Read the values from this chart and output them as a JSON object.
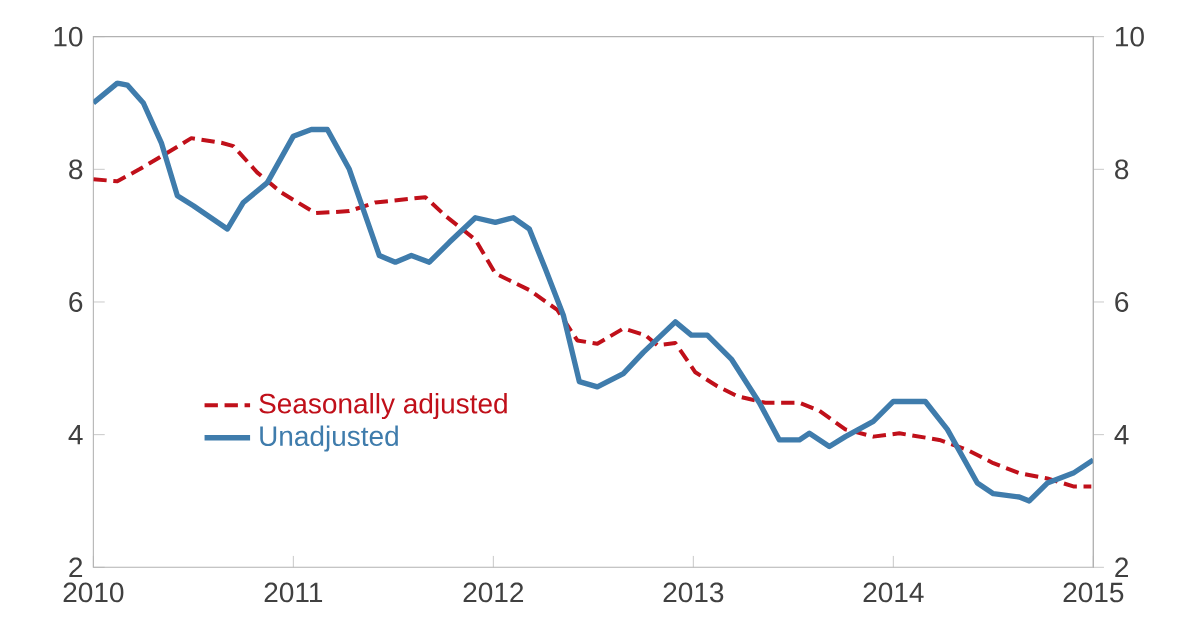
{
  "chart_data": {
    "type": "line",
    "xlim": [
      2010,
      2015
    ],
    "xticks": [
      2010,
      2011,
      2012,
      2013,
      2014,
      2015
    ],
    "ylim": [
      2,
      10
    ],
    "yticks": [
      2,
      4,
      6,
      8,
      10
    ],
    "y2lim": [
      2,
      10
    ],
    "y2ticks": [
      2,
      4,
      6,
      8,
      10
    ],
    "legend": "bottom left",
    "marker": "none",
    "series": [
      {
        "name": "Seasonally adjusted",
        "color": "#c0101a",
        "line_style": "dashed",
        "x": [
          2010,
          2010.12,
          2010.23,
          2010.37,
          2010.49,
          2010.64,
          2010.7,
          2010.82,
          2010.94,
          2011.11,
          2011.28,
          2011.41,
          2011.66,
          2011.76,
          2011.91,
          2012.01,
          2012.18,
          2012.32,
          2012.42,
          2012.52,
          2012.65,
          2012.76,
          2012.82,
          2012.91,
          2013.01,
          2013.12,
          2013.22,
          2013.36,
          2013.53,
          2013.63,
          2013.76,
          2013.9,
          2014.03,
          2014.23,
          2014.37,
          2014.5,
          2014.63,
          2014.77,
          2014.9,
          2014.99
        ],
        "values": [
          7.85,
          7.82,
          8.0,
          8.25,
          8.47,
          8.4,
          8.35,
          7.95,
          7.65,
          7.34,
          7.37,
          7.5,
          7.58,
          7.3,
          6.94,
          6.43,
          6.18,
          5.88,
          5.42,
          5.37,
          5.6,
          5.5,
          5.35,
          5.38,
          4.94,
          4.73,
          4.58,
          4.48,
          4.48,
          4.36,
          4.08,
          3.97,
          4.02,
          3.92,
          3.77,
          3.57,
          3.42,
          3.34,
          3.22,
          3.22
        ]
      },
      {
        "name": "Unadjusted",
        "color": "#3f7cac",
        "line_style": "solid",
        "x": [
          2010,
          2010.12,
          2010.17,
          2010.25,
          2010.34,
          2010.42,
          2010.5,
          2010.67,
          2010.75,
          2010.87,
          2011.0,
          2011.09,
          2011.17,
          2011.28,
          2011.43,
          2011.51,
          2011.59,
          2011.68,
          2011.78,
          2011.91,
          2012.01,
          2012.1,
          2012.18,
          2012.26,
          2012.35,
          2012.43,
          2012.52,
          2012.65,
          2012.75,
          2012.91,
          2012.99,
          2013.07,
          2013.19,
          2013.33,
          2013.43,
          2013.53,
          2013.58,
          2013.68,
          2013.76,
          2013.9,
          2014.0,
          2014.16,
          2014.27,
          2014.42,
          2014.5,
          2014.63,
          2014.68,
          2014.77,
          2014.9,
          2015
        ],
        "values": [
          9.0,
          9.3,
          9.27,
          9.0,
          8.4,
          7.6,
          7.45,
          7.1,
          7.5,
          7.8,
          8.5,
          8.6,
          8.6,
          8.0,
          6.7,
          6.6,
          6.7,
          6.6,
          6.9,
          7.27,
          7.2,
          7.27,
          7.1,
          6.5,
          5.8,
          4.8,
          4.72,
          4.92,
          5.24,
          5.7,
          5.5,
          5.5,
          5.14,
          4.48,
          3.92,
          3.92,
          4.02,
          3.82,
          3.97,
          4.2,
          4.5,
          4.5,
          4.08,
          3.27,
          3.11,
          3.06,
          3.0,
          3.27,
          3.42,
          3.62
        ]
      }
    ]
  }
}
